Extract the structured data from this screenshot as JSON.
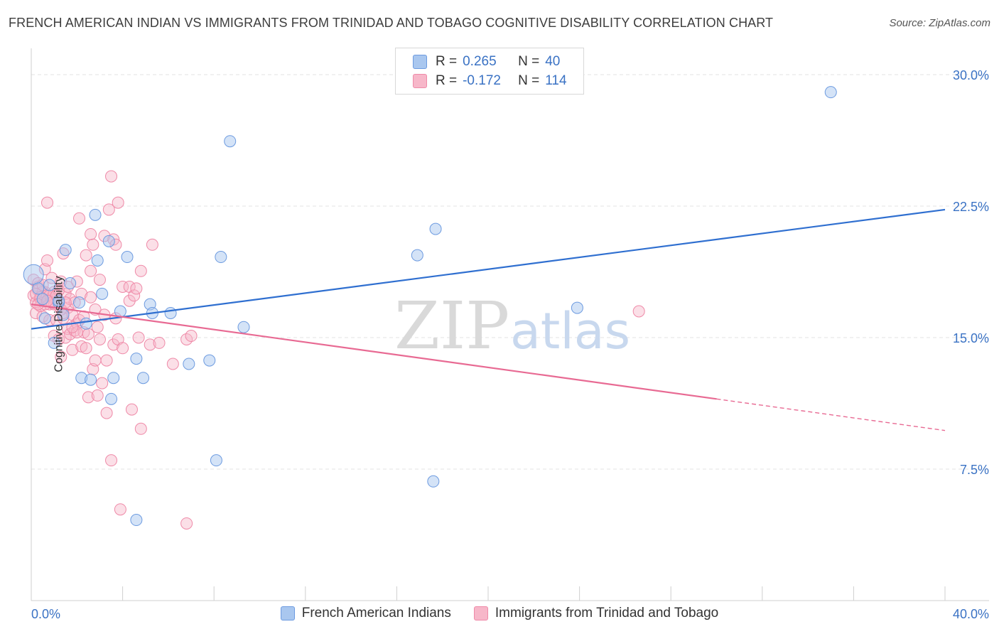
{
  "header": {
    "title": "FRENCH AMERICAN INDIAN VS IMMIGRANTS FROM TRINIDAD AND TOBAGO COGNITIVE DISABILITY CORRELATION CHART",
    "source": "Source: ZipAtlas.com"
  },
  "stats": {
    "r_label": "R =",
    "n_label": "N =",
    "rows": [
      {
        "r": "0.265",
        "n": "40"
      },
      {
        "r": "-0.172",
        "n": "114"
      }
    ]
  },
  "legend": [
    {
      "name": "French American Indians"
    },
    {
      "name": "Immigrants from Trinidad and Tobago"
    }
  ],
  "colors": {
    "blue_fill": "#a9c7ef",
    "blue_stroke": "#6d9be0",
    "blue_line": "#2f6fd0",
    "pink_fill": "#f7b7c9",
    "pink_stroke": "#ef8aa8",
    "pink_line": "#e86a93",
    "tick_label": "#3a72c4",
    "grid": "#e3e3e3"
  },
  "chart_data": {
    "type": "scatter",
    "title": "FRENCH AMERICAN INDIAN VS IMMIGRANTS FROM TRINIDAD AND TOBAGO COGNITIVE DISABILITY CORRELATION CHART",
    "xlabel": "",
    "ylabel": "Cognitive Disability",
    "xlim": [
      0,
      40
    ],
    "ylim": [
      0,
      31.5
    ],
    "x_tick_labels": [
      "0.0%",
      "40.0%"
    ],
    "y_ticks": [
      7.5,
      15.0,
      22.5,
      30.0
    ],
    "y_tick_labels": [
      "7.5%",
      "15.0%",
      "22.5%",
      "30.0%"
    ],
    "grid": true,
    "watermark": "ZIPatlas",
    "series": [
      {
        "name": "French American Indians",
        "points": [
          [
            0.1,
            18.6
          ],
          [
            0.3,
            17.8
          ],
          [
            0.5,
            17.2
          ],
          [
            0.6,
            16.1
          ],
          [
            0.8,
            18.0
          ],
          [
            1.0,
            14.7
          ],
          [
            1.2,
            17.0
          ],
          [
            1.4,
            16.3
          ],
          [
            1.5,
            20.0
          ],
          [
            1.7,
            18.1
          ],
          [
            2.1,
            17.0
          ],
          [
            2.2,
            12.7
          ],
          [
            2.4,
            15.8
          ],
          [
            2.6,
            12.6
          ],
          [
            2.8,
            22.0
          ],
          [
            2.9,
            19.4
          ],
          [
            3.1,
            17.5
          ],
          [
            3.4,
            20.5
          ],
          [
            3.5,
            11.5
          ],
          [
            3.6,
            12.7
          ],
          [
            3.9,
            16.5
          ],
          [
            4.2,
            19.6
          ],
          [
            4.6,
            13.8
          ],
          [
            4.9,
            12.7
          ],
          [
            5.2,
            16.9
          ],
          [
            5.3,
            16.4
          ],
          [
            6.1,
            16.4
          ],
          [
            6.9,
            13.5
          ],
          [
            7.8,
            13.7
          ],
          [
            8.1,
            8.0
          ],
          [
            8.3,
            19.6
          ],
          [
            8.7,
            26.2
          ],
          [
            9.3,
            15.6
          ],
          [
            16.9,
            19.7
          ],
          [
            17.7,
            21.2
          ],
          [
            17.6,
            6.8
          ],
          [
            4.6,
            4.6
          ],
          [
            23.9,
            16.7
          ],
          [
            35.0,
            29.0
          ],
          [
            1.2,
            17.1
          ]
        ],
        "trend": {
          "x": [
            0,
            40
          ],
          "y": [
            15.5,
            22.3
          ]
        }
      },
      {
        "name": "Immigrants from Trinidad and Tobago",
        "points": [
          [
            0.1,
            17.4
          ],
          [
            0.1,
            18.3
          ],
          [
            0.2,
            17.0
          ],
          [
            0.2,
            16.4
          ],
          [
            0.3,
            17.9
          ],
          [
            0.3,
            18.1
          ],
          [
            0.4,
            17.2
          ],
          [
            0.4,
            16.8
          ],
          [
            0.5,
            17.5
          ],
          [
            0.5,
            16.2
          ],
          [
            0.6,
            17.6
          ],
          [
            0.6,
            18.9
          ],
          [
            0.7,
            17.4
          ],
          [
            0.7,
            19.4
          ],
          [
            0.7,
            22.7
          ],
          [
            0.8,
            16.9
          ],
          [
            0.8,
            16.0
          ],
          [
            0.9,
            17.3
          ],
          [
            0.9,
            18.4
          ],
          [
            1.0,
            15.1
          ],
          [
            1.0,
            17.6
          ],
          [
            1.1,
            16.0
          ],
          [
            1.1,
            17.2
          ],
          [
            1.2,
            14.9
          ],
          [
            1.2,
            16.8
          ],
          [
            1.3,
            13.9
          ],
          [
            1.3,
            18.2
          ],
          [
            1.4,
            16.1
          ],
          [
            1.4,
            19.8
          ],
          [
            1.5,
            15.0
          ],
          [
            1.5,
            17.5
          ],
          [
            1.6,
            15.5
          ],
          [
            1.6,
            16.7
          ],
          [
            1.7,
            15.2
          ],
          [
            1.7,
            17.2
          ],
          [
            1.8,
            14.3
          ],
          [
            1.8,
            16.3
          ],
          [
            1.9,
            15.4
          ],
          [
            1.9,
            17.0
          ],
          [
            2.0,
            18.2
          ],
          [
            2.0,
            15.8
          ],
          [
            2.1,
            16.0
          ],
          [
            2.1,
            21.8
          ],
          [
            2.2,
            17.5
          ],
          [
            2.2,
            14.5
          ],
          [
            2.3,
            15.3
          ],
          [
            2.4,
            19.7
          ],
          [
            2.4,
            14.4
          ],
          [
            2.5,
            15.2
          ],
          [
            2.5,
            11.6
          ],
          [
            2.6,
            18.8
          ],
          [
            2.6,
            20.9
          ],
          [
            2.7,
            13.2
          ],
          [
            2.7,
            20.3
          ],
          [
            2.8,
            13.7
          ],
          [
            2.8,
            16.6
          ],
          [
            2.9,
            15.6
          ],
          [
            2.9,
            11.7
          ],
          [
            3.0,
            14.9
          ],
          [
            3.0,
            18.3
          ],
          [
            3.1,
            12.4
          ],
          [
            3.2,
            20.8
          ],
          [
            3.2,
            16.3
          ],
          [
            3.3,
            13.7
          ],
          [
            3.3,
            10.7
          ],
          [
            3.4,
            22.3
          ],
          [
            3.5,
            24.2
          ],
          [
            3.5,
            8.0
          ],
          [
            3.6,
            14.6
          ],
          [
            3.6,
            20.6
          ],
          [
            3.7,
            16.1
          ],
          [
            3.7,
            20.3
          ],
          [
            3.8,
            14.9
          ],
          [
            3.8,
            22.7
          ],
          [
            3.9,
            5.2
          ],
          [
            4.0,
            14.4
          ],
          [
            4.0,
            17.9
          ],
          [
            4.3,
            17.9
          ],
          [
            4.3,
            17.1
          ],
          [
            4.4,
            10.9
          ],
          [
            4.5,
            17.4
          ],
          [
            4.6,
            17.8
          ],
          [
            4.7,
            15.0
          ],
          [
            4.8,
            18.8
          ],
          [
            4.8,
            9.8
          ],
          [
            5.2,
            14.6
          ],
          [
            5.3,
            20.3
          ],
          [
            5.6,
            14.7
          ],
          [
            6.2,
            13.5
          ],
          [
            6.8,
            4.4
          ],
          [
            6.8,
            14.9
          ],
          [
            7.0,
            15.1
          ],
          [
            26.6,
            16.5
          ],
          [
            0.3,
            17.7
          ],
          [
            0.5,
            17.6
          ],
          [
            0.6,
            16.9
          ],
          [
            0.8,
            17.4
          ],
          [
            1.0,
            16.9
          ],
          [
            1.2,
            17.7
          ],
          [
            1.4,
            16.4
          ],
          [
            0.2,
            17.5
          ],
          [
            0.4,
            17.3
          ],
          [
            0.9,
            17.0
          ],
          [
            1.1,
            17.4
          ],
          [
            1.3,
            16.6
          ],
          [
            1.6,
            17.9
          ],
          [
            2.3,
            16.2
          ],
          [
            2.0,
            15.3
          ],
          [
            1.8,
            15.6
          ],
          [
            0.3,
            16.9
          ],
          [
            0.7,
            17.1
          ],
          [
            1.5,
            17.0
          ],
          [
            2.6,
            17.3
          ],
          [
            0.5,
            18.0
          ]
        ],
        "trend": {
          "x": [
            0,
            30
          ],
          "y": [
            16.9,
            11.5
          ]
        },
        "trend_dashed": {
          "x": [
            30,
            40
          ],
          "y": [
            11.5,
            9.7
          ]
        }
      }
    ]
  }
}
